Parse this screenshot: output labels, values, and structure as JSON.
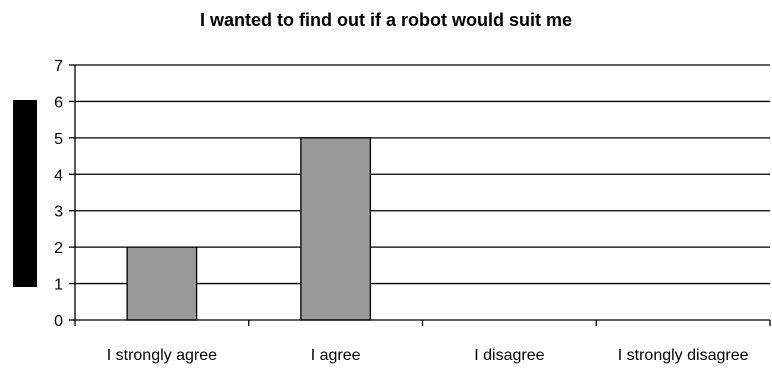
{
  "chart_data": {
    "type": "bar",
    "title": "I wanted to find out if a robot would suit me",
    "xlabel": "",
    "ylabel": "",
    "categories": [
      "I strongly agree",
      "I agree",
      "I disagree",
      "I strongly disagree"
    ],
    "values": [
      2,
      5,
      0,
      0
    ],
    "ylim": [
      0,
      7
    ],
    "yticks": [
      "0",
      "1",
      "2",
      "3",
      "4",
      "5",
      "6",
      "7"
    ],
    "grid": true,
    "bar_color": "#999999"
  }
}
